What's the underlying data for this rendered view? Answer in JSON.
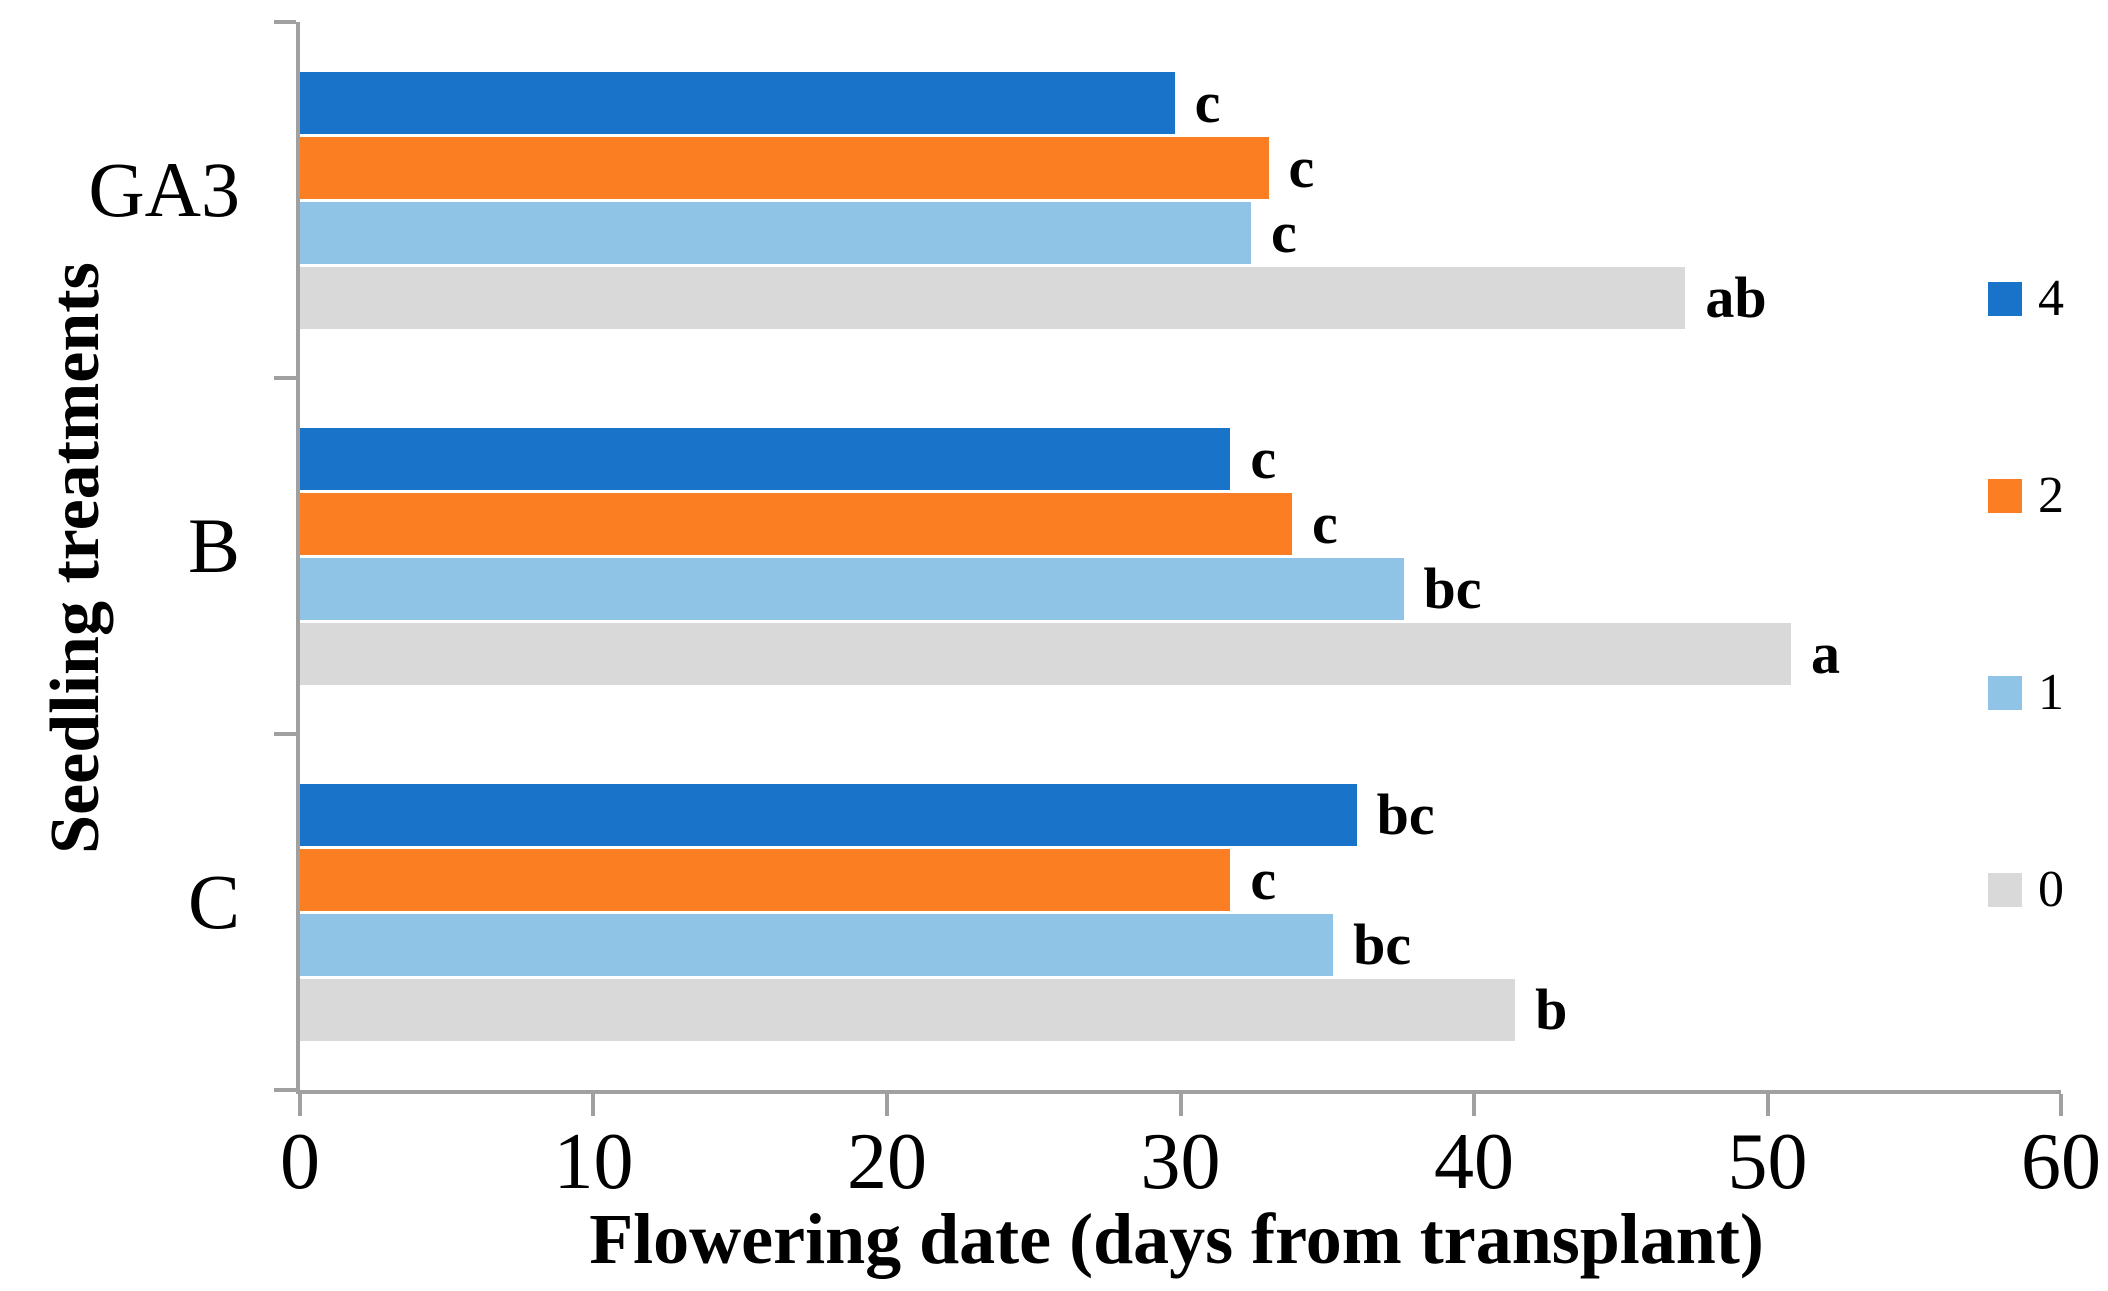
{
  "figure": {
    "background_color": "#ffffff",
    "axis_color": "#a0a0a0",
    "text_color": "#000000"
  },
  "chart_data": {
    "type": "bar",
    "orientation": "horizontal",
    "title": "",
    "xlabel": "Flowering date (days from transplant)",
    "ylabel": "Seedling treatments",
    "xlim": [
      0,
      60
    ],
    "x_ticks": [
      "0",
      "10",
      "20",
      "30",
      "40",
      "50",
      "60"
    ],
    "x_tick_values": [
      0,
      10,
      20,
      30,
      40,
      50,
      60
    ],
    "categories": [
      "GA3",
      "B",
      "C"
    ],
    "series": [
      {
        "name": "4",
        "color": "#1973c8",
        "values": [
          29.8,
          31.7,
          36.0
        ],
        "sig_labels": [
          "c",
          "c",
          "bc"
        ]
      },
      {
        "name": "2",
        "color": "#fc7e22",
        "values": [
          33.0,
          33.8,
          31.7
        ],
        "sig_labels": [
          "c",
          "c",
          "c"
        ]
      },
      {
        "name": "1",
        "color": "#90c4e6",
        "values": [
          32.4,
          37.6,
          35.2
        ],
        "sig_labels": [
          "c",
          "bc",
          "bc"
        ]
      },
      {
        "name": "0",
        "color": "#d9d9d9",
        "values": [
          47.2,
          50.8,
          41.4
        ],
        "sig_labels": [
          "ab",
          "a",
          "b"
        ]
      }
    ],
    "series_order_note": "bars within each category top to bottom: 4, 2, 1, 0",
    "legend": {
      "position": "right",
      "entries": [
        "4",
        "2",
        "1",
        "0"
      ]
    },
    "grid": false
  }
}
